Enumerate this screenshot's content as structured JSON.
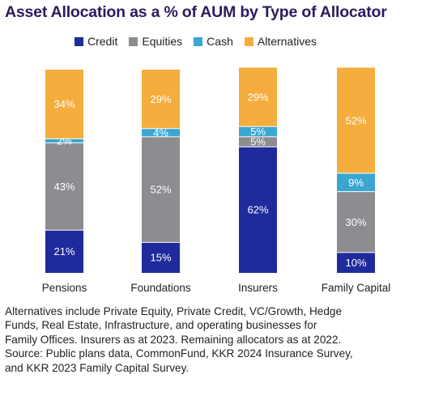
{
  "chart_data": {
    "type": "bar",
    "stacked": true,
    "title": "Asset Allocation as a % of AUM by Type of Allocator",
    "categories": [
      "Pensions",
      "Foundations",
      "Insurers",
      "Family Capital"
    ],
    "ylim": [
      0,
      100
    ],
    "grid": false,
    "legend_position": "top",
    "series": [
      {
        "name": "Credit",
        "color": "#1f2a9c",
        "values": [
          21,
          15,
          62,
          10
        ],
        "labels": [
          "21%",
          "15%",
          "62%",
          "10%"
        ]
      },
      {
        "name": "Equities",
        "color": "#8c8c91",
        "values": [
          43,
          52,
          5,
          30
        ],
        "labels": [
          "43%",
          "52%",
          "5%",
          "30%"
        ]
      },
      {
        "name": "Cash",
        "color": "#3aa6d2",
        "values": [
          2,
          4,
          5,
          9
        ],
        "labels": [
          "2%",
          "4%",
          "5%",
          "9%"
        ]
      },
      {
        "name": "Alternatives",
        "color": "#f5ad3e",
        "values": [
          34,
          29,
          29,
          52
        ],
        "labels": [
          "34%",
          "29%",
          "29%",
          "52%"
        ]
      }
    ]
  },
  "footnote": [
    "Alternatives include Private Equity, Private Credit, VC/Growth, Hedge",
    "Funds, Real Estate, Infrastructure, and operating businesses for",
    "Family Offices. Insurers as at 2023. Remaining allocators as at 2022.",
    "Source: Public plans data, CommonFund, KKR 2024 Insurance Survey,",
    "and KKR 2023 Family Capital Survey."
  ]
}
